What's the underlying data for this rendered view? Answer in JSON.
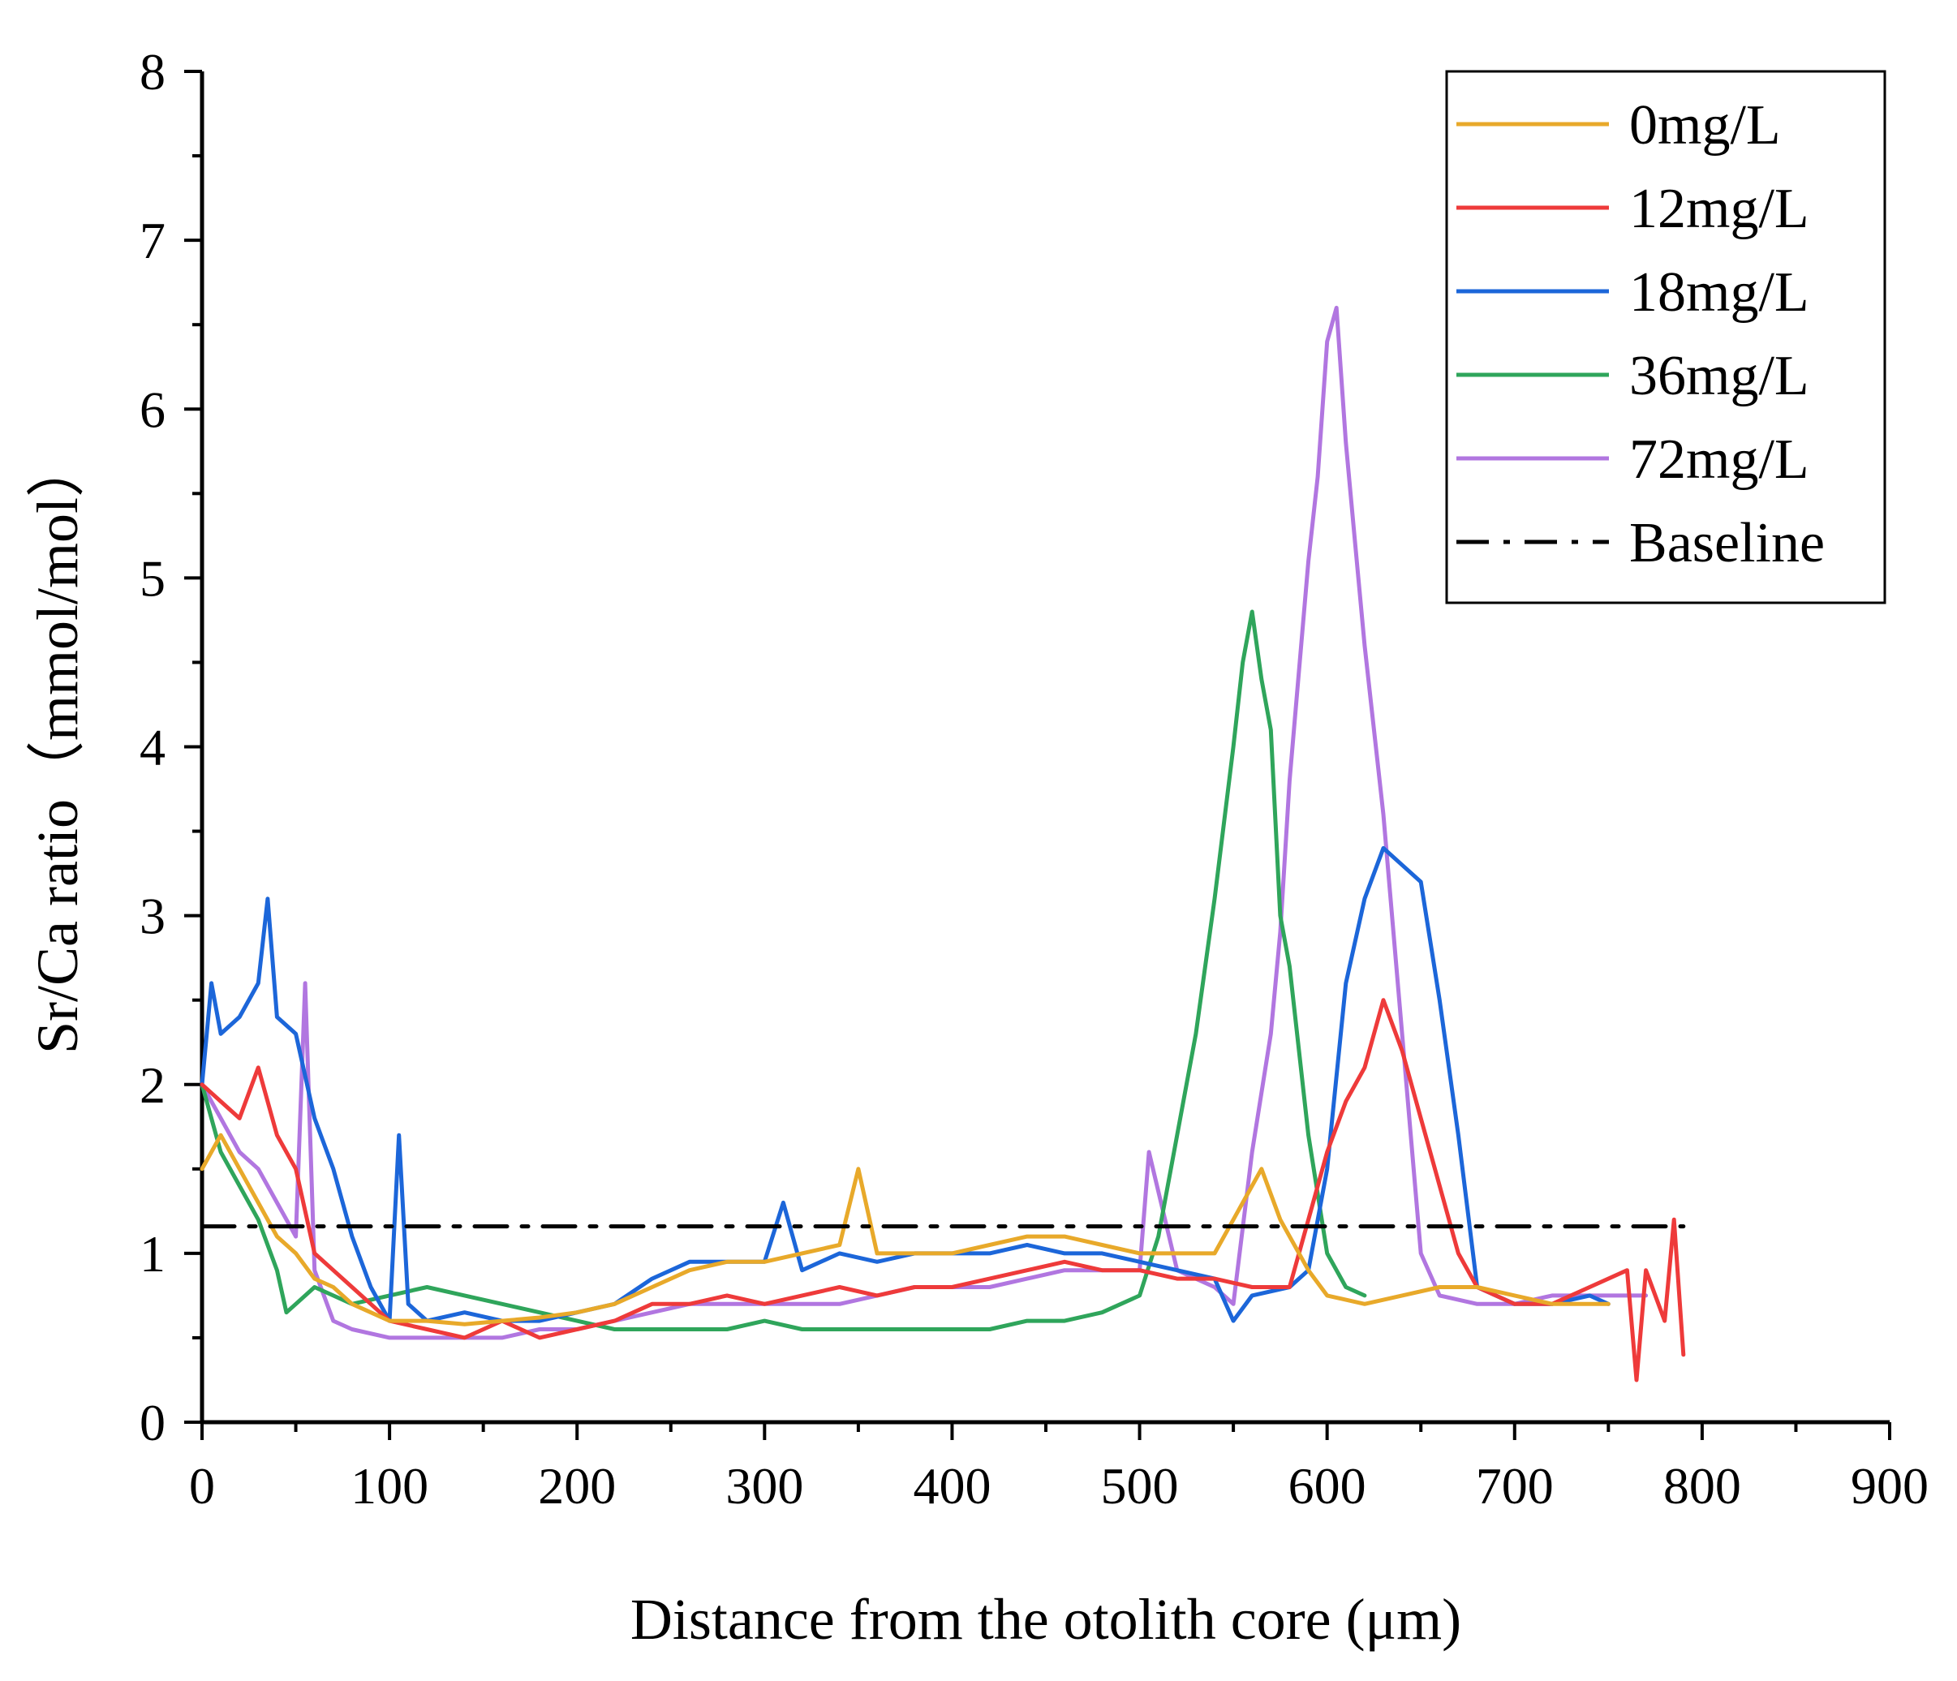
{
  "chart_data": {
    "type": "line",
    "title": "",
    "xlabel": "Distance from the otolith core (μm)",
    "ylabel": "Sr/Ca ratio（mmol/mol）",
    "xlim": [
      0,
      900
    ],
    "ylim": [
      0,
      8
    ],
    "xticks": [
      0,
      100,
      200,
      300,
      400,
      500,
      600,
      700,
      800,
      900
    ],
    "yticks": [
      0,
      1,
      2,
      3,
      4,
      5,
      6,
      7,
      8
    ],
    "xtick_labels": [
      "0",
      "100",
      "200",
      "300",
      "400",
      "500",
      "600",
      "700",
      "800",
      "900"
    ],
    "ytick_labels": [
      "0",
      "1",
      "2",
      "3",
      "4",
      "5",
      "6",
      "7",
      "8"
    ],
    "grid": false,
    "legend_position": "top-right",
    "series": [
      {
        "name": "0mg/L",
        "color": "#e8a92a",
        "x": [
          0,
          10,
          20,
          30,
          40,
          50,
          60,
          70,
          80,
          90,
          100,
          120,
          140,
          160,
          180,
          200,
          220,
          240,
          260,
          280,
          300,
          320,
          340,
          350,
          360,
          380,
          400,
          420,
          440,
          460,
          480,
          500,
          520,
          540,
          555,
          565,
          575,
          590,
          600,
          620,
          640,
          660,
          680,
          700,
          720,
          740,
          750
        ],
        "y": [
          1.5,
          1.7,
          1.5,
          1.3,
          1.1,
          1.0,
          0.85,
          0.8,
          0.7,
          0.65,
          0.6,
          0.6,
          0.58,
          0.6,
          0.62,
          0.65,
          0.7,
          0.8,
          0.9,
          0.95,
          0.95,
          1.0,
          1.05,
          1.5,
          1.0,
          1.0,
          1.0,
          1.05,
          1.1,
          1.1,
          1.05,
          1.0,
          1.0,
          1.0,
          1.3,
          1.5,
          1.2,
          0.9,
          0.75,
          0.7,
          0.75,
          0.8,
          0.8,
          0.75,
          0.7,
          0.7,
          0.7
        ]
      },
      {
        "name": "12mg/L",
        "color": "#ee3a3a",
        "x": [
          0,
          10,
          20,
          30,
          40,
          50,
          60,
          70,
          80,
          90,
          100,
          120,
          140,
          160,
          180,
          200,
          220,
          240,
          260,
          280,
          300,
          320,
          340,
          360,
          380,
          400,
          420,
          440,
          460,
          480,
          500,
          520,
          540,
          560,
          580,
          590,
          600,
          610,
          620,
          630,
          640,
          650,
          660,
          670,
          680,
          700,
          720,
          740,
          760,
          765,
          770,
          780,
          785,
          790
        ],
        "y": [
          2.0,
          1.9,
          1.8,
          2.1,
          1.7,
          1.5,
          1.0,
          0.9,
          0.8,
          0.7,
          0.6,
          0.55,
          0.5,
          0.6,
          0.5,
          0.55,
          0.6,
          0.7,
          0.7,
          0.75,
          0.7,
          0.75,
          0.8,
          0.75,
          0.8,
          0.8,
          0.85,
          0.9,
          0.95,
          0.9,
          0.9,
          0.85,
          0.85,
          0.8,
          0.8,
          1.2,
          1.6,
          1.9,
          2.1,
          2.5,
          2.2,
          1.8,
          1.4,
          1.0,
          0.8,
          0.7,
          0.7,
          0.8,
          0.9,
          0.25,
          0.9,
          0.6,
          1.2,
          0.4
        ]
      },
      {
        "name": "18mg/L",
        "color": "#1c66d9",
        "x": [
          0,
          5,
          10,
          20,
          30,
          35,
          40,
          50,
          60,
          70,
          80,
          90,
          100,
          105,
          110,
          120,
          140,
          160,
          180,
          200,
          220,
          240,
          260,
          280,
          300,
          310,
          320,
          340,
          360,
          380,
          400,
          420,
          440,
          460,
          480,
          500,
          520,
          540,
          550,
          560,
          580,
          590,
          600,
          610,
          620,
          630,
          640,
          650,
          660,
          670,
          680,
          700,
          720,
          740,
          750
        ],
        "y": [
          2.0,
          2.6,
          2.3,
          2.4,
          2.6,
          3.1,
          2.4,
          2.3,
          1.8,
          1.5,
          1.1,
          0.8,
          0.6,
          1.7,
          0.7,
          0.6,
          0.65,
          0.6,
          0.6,
          0.65,
          0.7,
          0.85,
          0.95,
          0.95,
          0.95,
          1.3,
          0.9,
          1.0,
          0.95,
          1.0,
          1.0,
          1.0,
          1.05,
          1.0,
          1.0,
          0.95,
          0.9,
          0.85,
          0.6,
          0.75,
          0.8,
          0.9,
          1.5,
          2.6,
          3.1,
          3.4,
          3.3,
          3.2,
          2.5,
          1.7,
          0.8,
          0.7,
          0.7,
          0.75,
          0.7
        ]
      },
      {
        "name": "36mg/L",
        "color": "#2fa55b",
        "x": [
          0,
          10,
          20,
          30,
          40,
          45,
          50,
          60,
          70,
          80,
          100,
          120,
          140,
          160,
          180,
          200,
          220,
          240,
          260,
          280,
          300,
          320,
          340,
          360,
          380,
          400,
          420,
          440,
          460,
          480,
          500,
          510,
          520,
          530,
          540,
          550,
          555,
          560,
          565,
          570,
          575,
          580,
          590,
          600,
          610,
          620
        ],
        "y": [
          2.0,
          1.6,
          1.4,
          1.2,
          0.9,
          0.65,
          0.7,
          0.8,
          0.75,
          0.7,
          0.75,
          0.8,
          0.75,
          0.7,
          0.65,
          0.6,
          0.55,
          0.55,
          0.55,
          0.55,
          0.6,
          0.55,
          0.55,
          0.55,
          0.55,
          0.55,
          0.55,
          0.6,
          0.6,
          0.65,
          0.75,
          1.1,
          1.7,
          2.3,
          3.1,
          4.0,
          4.5,
          4.8,
          4.4,
          4.1,
          3.0,
          2.7,
          1.7,
          1.0,
          0.8,
          0.75
        ]
      },
      {
        "name": "72mg/L",
        "color": "#b176e0",
        "x": [
          0,
          10,
          20,
          30,
          40,
          50,
          55,
          60,
          70,
          80,
          100,
          120,
          140,
          160,
          180,
          200,
          220,
          240,
          260,
          280,
          300,
          320,
          340,
          360,
          380,
          400,
          420,
          440,
          460,
          480,
          500,
          505,
          520,
          540,
          550,
          560,
          570,
          575,
          580,
          590,
          595,
          600,
          605,
          610,
          615,
          620,
          630,
          640,
          650,
          660,
          680,
          700,
          720,
          740,
          760,
          770
        ],
        "y": [
          2.0,
          1.8,
          1.6,
          1.5,
          1.3,
          1.1,
          2.6,
          0.9,
          0.6,
          0.55,
          0.5,
          0.5,
          0.5,
          0.5,
          0.55,
          0.55,
          0.6,
          0.65,
          0.7,
          0.7,
          0.7,
          0.7,
          0.7,
          0.75,
          0.8,
          0.8,
          0.8,
          0.85,
          0.9,
          0.9,
          0.9,
          1.6,
          0.9,
          0.8,
          0.7,
          1.6,
          2.3,
          2.9,
          3.8,
          5.1,
          5.6,
          6.4,
          6.6,
          5.8,
          5.2,
          4.6,
          3.6,
          2.3,
          1.0,
          0.75,
          0.7,
          0.7,
          0.75,
          0.75,
          0.75,
          0.75
        ]
      },
      {
        "name": "Baseline",
        "color": "#000000",
        "x": [
          0,
          790
        ],
        "y": [
          1.16,
          1.16
        ]
      }
    ]
  }
}
